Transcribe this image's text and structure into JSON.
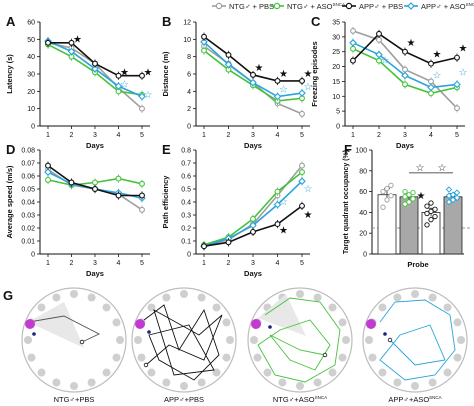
{
  "legend": {
    "items": [
      {
        "label": "NTG♂ + PBS",
        "color": "#9e9e9e",
        "marker": "circle-open"
      },
      {
        "label": "NTG♂ + ASO",
        "sup": "SNCA",
        "color": "#44c23b",
        "marker": "circle-open"
      },
      {
        "label": "APP♂ + PBS",
        "color": "#111111",
        "marker": "circle-open"
      },
      {
        "label": "APP♂ + ASO",
        "sup": "SNCA",
        "color": "#29a4dc",
        "marker": "diamond-open"
      }
    ]
  },
  "colors": {
    "ntg_pbs": "#9e9e9e",
    "ntg_aso": "#44c23b",
    "app_pbs": "#111111",
    "app_aso": "#29a4dc",
    "bar_gray": "#a8a8a8",
    "pool_gray": "#cfcfcf"
  },
  "chart_data": [
    {
      "panel": "A",
      "type": "line",
      "xlabel": "Days",
      "ylabel": "Latency (s)",
      "x": [
        1,
        2,
        3,
        4,
        5
      ],
      "ylim": [
        0,
        60
      ],
      "yticks": [
        0,
        10,
        20,
        30,
        40,
        50,
        60
      ],
      "xticks": [
        "1",
        "2",
        "3",
        "4",
        "5"
      ],
      "series": [
        {
          "name": "NTG♂ + PBS",
          "values": [
            48,
            45,
            36,
            22,
            10
          ]
        },
        {
          "name": "NTG♂ + ASO SNCA",
          "values": [
            47,
            40,
            31,
            20,
            18
          ]
        },
        {
          "name": "APP♂ + PBS",
          "values": [
            48,
            48,
            36,
            29,
            29
          ]
        },
        {
          "name": "APP♂ + ASO SNCA",
          "values": [
            49,
            43,
            33,
            23,
            17
          ]
        }
      ],
      "annotations": [
        {
          "x": 2,
          "y": 50,
          "symbol": "★"
        },
        {
          "x": 4,
          "y": 31,
          "symbol": "★"
        },
        {
          "x": 5,
          "y": 31,
          "symbol": "★"
        },
        {
          "x": 4,
          "y": 24,
          "symbol": "☆"
        },
        {
          "x": 5,
          "y": 18,
          "symbol": "☆"
        }
      ]
    },
    {
      "panel": "B",
      "type": "line",
      "xlabel": "Days",
      "ylabel": "Distance (m)",
      "x": [
        1,
        2,
        3,
        4,
        5
      ],
      "ylim": [
        0,
        12
      ],
      "yticks": [
        0,
        2,
        4,
        6,
        8,
        10,
        12
      ],
      "xticks": [
        "1",
        "2",
        "3",
        "4",
        "5"
      ],
      "series": [
        {
          "name": "NTG♂ + PBS",
          "values": [
            9.2,
            7.2,
            5.0,
            2.6,
            1.4
          ]
        },
        {
          "name": "NTG♂ + ASO SNCA",
          "values": [
            8.7,
            6.5,
            4.7,
            2.9,
            3.2
          ]
        },
        {
          "name": "APP♂ + PBS",
          "values": [
            10.3,
            8.2,
            5.9,
            5.2,
            5.2
          ]
        },
        {
          "name": "APP♂ + ASO SNCA",
          "values": [
            9.7,
            7.1,
            5.0,
            3.4,
            3.8
          ]
        }
      ],
      "annotations": [
        {
          "x": 3,
          "y": 6.7,
          "symbol": "★"
        },
        {
          "x": 4,
          "y": 6.0,
          "symbol": "★"
        },
        {
          "x": 5,
          "y": 6.0,
          "symbol": "★"
        },
        {
          "x": 4,
          "y": 4.2,
          "symbol": "☆"
        },
        {
          "x": 5,
          "y": 4.5,
          "symbol": "☆"
        }
      ]
    },
    {
      "panel": "C",
      "type": "line",
      "xlabel": "Days",
      "ylabel": "Freezing episodes",
      "x": [
        1,
        2,
        3,
        4,
        5
      ],
      "ylim": [
        0,
        35
      ],
      "yticks": [
        0,
        5,
        10,
        15,
        20,
        25,
        30,
        35
      ],
      "xticks": [
        "1",
        "2",
        "3",
        "4",
        "5"
      ],
      "series": [
        {
          "name": "NTG♂ + PBS",
          "values": [
            32,
            29,
            19,
            15,
            6
          ]
        },
        {
          "name": "NTG♂ + ASO SNCA",
          "values": [
            26,
            22,
            14,
            11,
            13
          ]
        },
        {
          "name": "APP♂ + PBS",
          "values": [
            22,
            31,
            25,
            21,
            23
          ]
        },
        {
          "name": "APP♂ + ASO SNCA",
          "values": [
            28,
            24,
            17,
            13,
            14
          ]
        }
      ],
      "annotations": [
        {
          "x": 3,
          "y": 28,
          "symbol": "★"
        },
        {
          "x": 4,
          "y": 24,
          "symbol": "★"
        },
        {
          "x": 5,
          "y": 26,
          "symbol": "★"
        },
        {
          "x": 2,
          "y": 22,
          "symbol": "☆"
        },
        {
          "x": 4,
          "y": 17,
          "symbol": "☆"
        },
        {
          "x": 5,
          "y": 18,
          "symbol": "☆"
        }
      ]
    },
    {
      "panel": "D",
      "type": "line",
      "xlabel": "Days",
      "ylabel": "Average speed (m/s)",
      "x": [
        1,
        2,
        3,
        4,
        5
      ],
      "ylim": [
        0,
        0.08
      ],
      "yticks": [
        0,
        0.01,
        0.02,
        0.03,
        0.04,
        0.05,
        0.06,
        0.07,
        0.08
      ],
      "xticks": [
        "1",
        "2",
        "3",
        "4",
        "5"
      ],
      "series": [
        {
          "name": "NTG♂ + PBS",
          "values": [
            0.065,
            0.053,
            0.05,
            0.046,
            0.034
          ]
        },
        {
          "name": "NTG♂ + ASO SNCA",
          "values": [
            0.057,
            0.053,
            0.055,
            0.058,
            0.054
          ]
        },
        {
          "name": "APP♂ + PBS",
          "values": [
            0.068,
            0.055,
            0.05,
            0.045,
            0.045
          ]
        },
        {
          "name": "APP♂ + ASO SNCA",
          "values": [
            0.063,
            0.054,
            0.05,
            0.047,
            0.043
          ]
        }
      ],
      "annotations": []
    },
    {
      "panel": "E",
      "type": "line",
      "xlabel": "Days",
      "ylabel": "Path efficiency",
      "x": [
        1,
        2,
        3,
        4,
        5
      ],
      "ylim": [
        0,
        0.8
      ],
      "yticks": [
        0,
        0.1,
        0.2,
        0.3,
        0.4,
        0.5,
        0.6,
        0.7,
        0.8
      ],
      "xticks": [
        "1",
        "2",
        "3",
        "4",
        "5"
      ],
      "series": [
        {
          "name": "NTG♂ + PBS",
          "values": [
            0.06,
            0.11,
            0.23,
            0.45,
            0.68
          ]
        },
        {
          "name": "NTG♂ + ASO SNCA",
          "values": [
            0.07,
            0.13,
            0.27,
            0.48,
            0.63
          ]
        },
        {
          "name": "APP♂ + PBS",
          "values": [
            0.06,
            0.09,
            0.17,
            0.23,
            0.37
          ]
        },
        {
          "name": "APP♂ + ASO SNCA",
          "values": [
            0.06,
            0.12,
            0.22,
            0.38,
            0.56
          ]
        }
      ],
      "annotations": [
        {
          "x": 4,
          "y": 0.18,
          "symbol": "★"
        },
        {
          "x": 5,
          "y": 0.3,
          "symbol": "★"
        },
        {
          "x": 4,
          "y": 0.4,
          "symbol": "☆"
        },
        {
          "x": 5,
          "y": 0.5,
          "symbol": "☆"
        }
      ]
    },
    {
      "panel": "F",
      "type": "bar",
      "xlabel": "Probe",
      "ylabel": "Target quadrant occupancy (%)",
      "categories": [
        "NTG♂ + PBS",
        "NTG♂ + ASO SNCA",
        "APP♂ + PBS",
        "APP♂ + ASO SNCA"
      ],
      "values": [
        57,
        55,
        40,
        55
      ],
      "errors": [
        6,
        3,
        4,
        3
      ],
      "ylim": [
        0,
        100
      ],
      "yticks": [
        0,
        20,
        40,
        60,
        80,
        100
      ],
      "chance_line": 25,
      "points": [
        [
          45,
          52,
          56,
          60,
          63,
          66
        ],
        [
          48,
          50,
          53,
          55,
          57,
          59,
          60
        ],
        [
          28,
          33,
          36,
          39,
          41,
          43,
          46,
          49
        ],
        [
          50,
          52,
          54,
          56,
          57,
          59,
          62
        ]
      ],
      "annotations": [
        {
          "between": [
            1,
            2
          ],
          "symbol": "☆"
        },
        {
          "between": [
            2,
            3
          ],
          "symbol": "☆"
        },
        {
          "over": 2,
          "symbol": "★"
        }
      ]
    }
  ],
  "panels": {
    "labels": [
      "A",
      "B",
      "C",
      "D",
      "E",
      "F",
      "G"
    ]
  },
  "swim_paths": [
    {
      "caption": "NTG♂+PBS"
    },
    {
      "caption": "APP♂+PBS"
    },
    {
      "caption": "NTG♂+ASO",
      "sup": "SNCA"
    },
    {
      "caption": "APP♂+ASO",
      "sup": "SNCA"
    }
  ]
}
